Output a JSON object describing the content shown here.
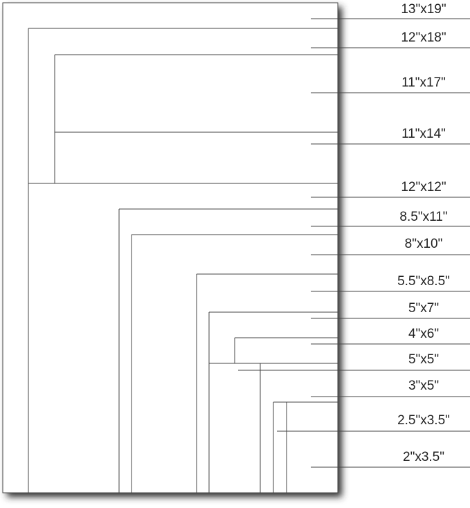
{
  "sizes": [
    {
      "label": "13\"x19\""
    },
    {
      "label": "12\"x18\""
    },
    {
      "label": "11\"x17\""
    },
    {
      "label": "11\"x14\""
    },
    {
      "label": "12\"x12\""
    },
    {
      "label": "8.5\"x11\""
    },
    {
      "label": "8\"x10\""
    },
    {
      "label": "5.5\"x8.5\""
    },
    {
      "label": "5\"x7\""
    },
    {
      "label": "4\"x6\""
    },
    {
      "label": "5\"x5\""
    },
    {
      "label": "3\"x5\""
    },
    {
      "label": "2.5\"x3.5\""
    },
    {
      "label": "2\"x3.5\""
    }
  ],
  "colors": {
    "line": "#444444",
    "paper": "#ffffff",
    "shadow": "#3a3a3a"
  }
}
